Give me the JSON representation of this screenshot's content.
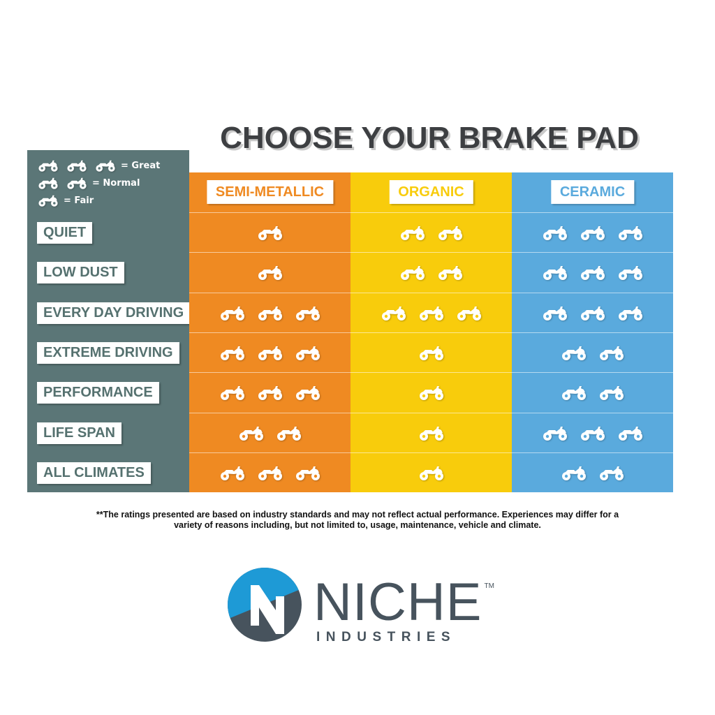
{
  "title": "CHOOSE YOUR BRAKE PAD",
  "legend": [
    {
      "count": 3,
      "label": "= Great"
    },
    {
      "count": 2,
      "label": "= Normal"
    },
    {
      "count": 1,
      "label": "= Fair"
    }
  ],
  "icon": "atv-quad-icon",
  "columns": [
    {
      "label": "SEMI-METALLIC",
      "color": "#ef8a22"
    },
    {
      "label": "ORGANIC",
      "color": "#f8cc0c"
    },
    {
      "label": "CERAMIC",
      "color": "#5aaadd"
    }
  ],
  "label_colors": {
    "panel": "#5b7677",
    "row_text": "#55716f"
  },
  "rows": [
    {
      "label": "QUIET",
      "ratings": [
        1,
        2,
        3
      ]
    },
    {
      "label": "LOW DUST",
      "ratings": [
        1,
        2,
        3
      ]
    },
    {
      "label": "EVERY DAY DRIVING",
      "ratings": [
        3,
        3,
        3
      ]
    },
    {
      "label": "EXTREME DRIVING",
      "ratings": [
        3,
        1,
        2
      ]
    },
    {
      "label": "PERFORMANCE",
      "ratings": [
        3,
        1,
        2
      ]
    },
    {
      "label": "LIFE SPAN",
      "ratings": [
        2,
        1,
        3
      ]
    },
    {
      "label": "ALL CLIMATES",
      "ratings": [
        3,
        1,
        2
      ]
    }
  ],
  "footnote": "**The ratings presented are based on industry standards and may not reflect actual performance. Experiences may differ for a variety of reasons including, but not limited to, usage, maintenance, vehicle and climate.",
  "logo": {
    "name": "NICHE",
    "sub": "INDUSTRIES",
    "tm": "TM",
    "colors": {
      "blue": "#1e9ad6",
      "gray": "#47535d"
    }
  }
}
